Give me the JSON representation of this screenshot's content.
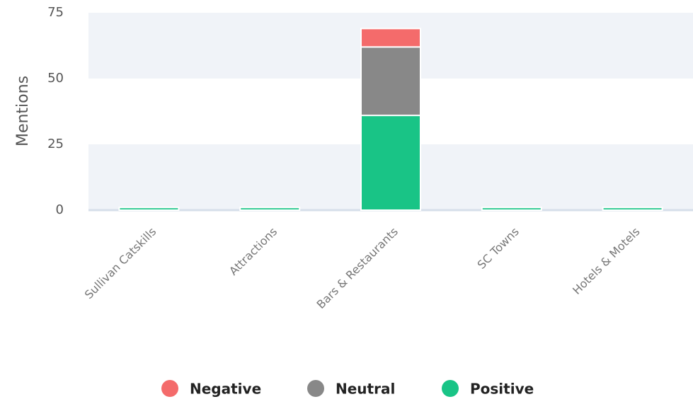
{
  "chart_data": {
    "type": "stacked_bar",
    "y_label": "Mentions",
    "categories": [
      "Sullivan Catskills",
      "Attractions",
      "Bars & Restaurants",
      "SC Towns",
      "Hotels & Motels"
    ],
    "series": [
      {
        "name": "Negative",
        "color": "#f46b6b",
        "values": [
          0,
          0,
          7,
          0,
          0
        ]
      },
      {
        "name": "Neutral",
        "color": "#888888",
        "values": [
          0,
          0,
          26,
          0,
          0
        ]
      },
      {
        "name": "Positive",
        "color": "#19c486",
        "values": [
          1,
          1,
          36,
          1,
          1
        ]
      }
    ],
    "ylim": [
      0,
      75
    ],
    "yticks": [
      0,
      25,
      50,
      75
    ],
    "grid": true,
    "legend": "bottom"
  }
}
